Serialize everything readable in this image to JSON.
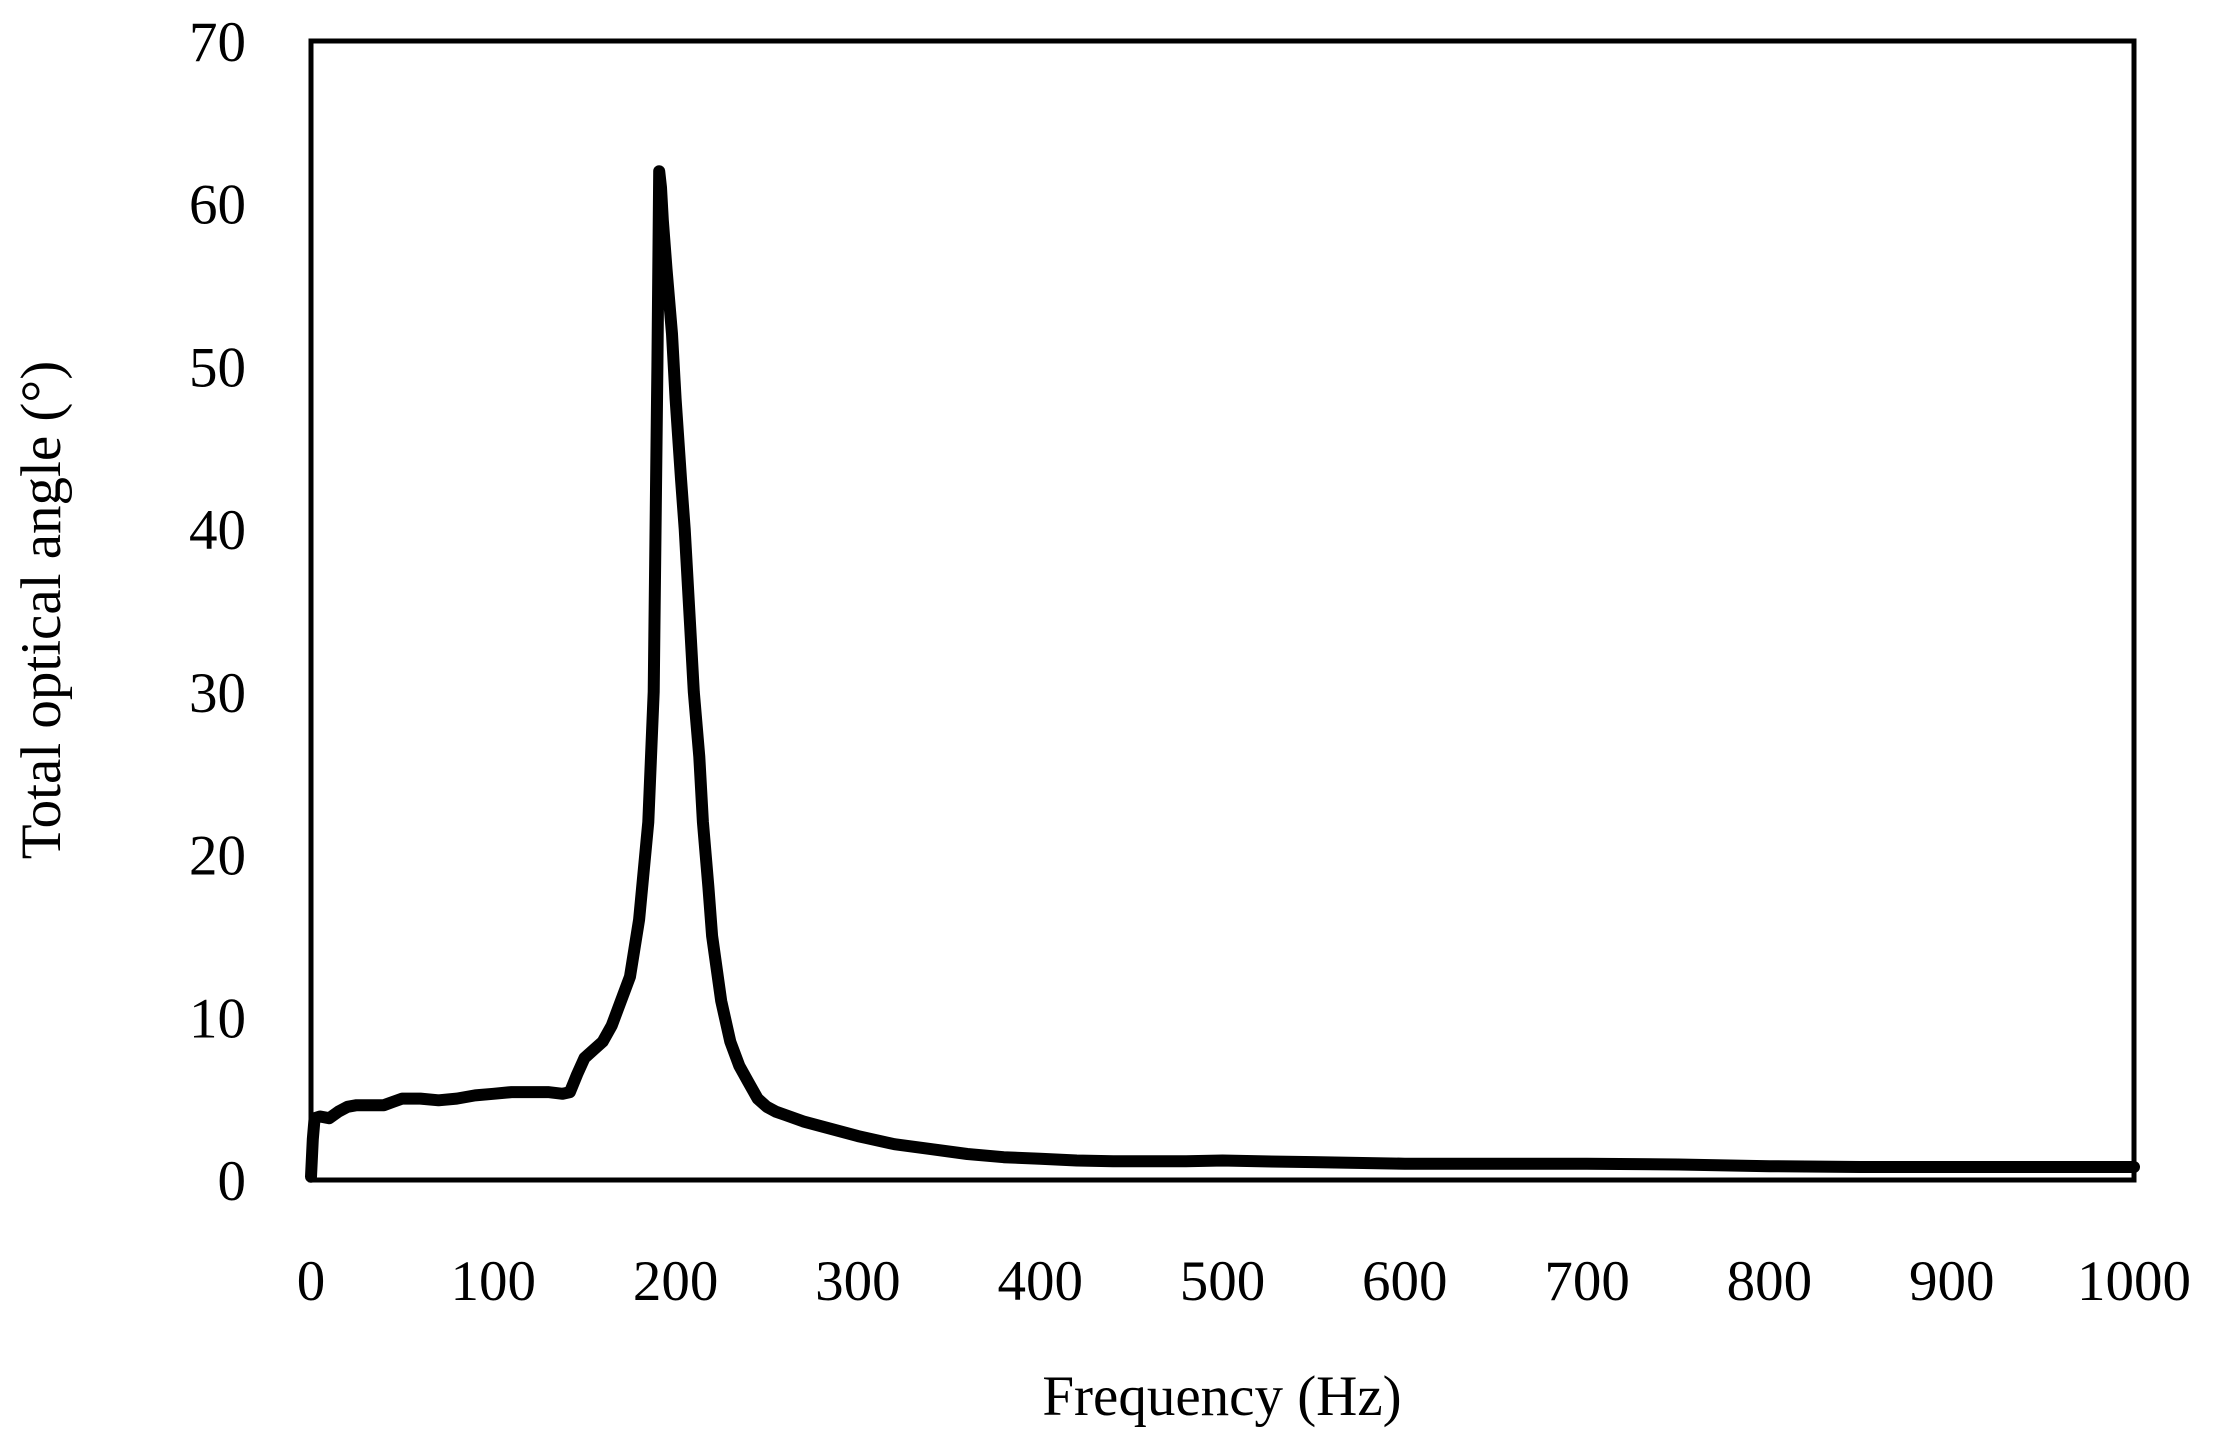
{
  "chart_data": {
    "type": "line",
    "title": "",
    "xlabel": "Frequency (Hz)",
    "ylabel": "Total optical angle (°)",
    "xlim": [
      0,
      1000
    ],
    "ylim": [
      0,
      70
    ],
    "xticks": [
      0,
      100,
      200,
      300,
      400,
      500,
      600,
      700,
      800,
      900,
      1000
    ],
    "yticks": [
      0,
      10,
      20,
      30,
      40,
      50,
      60,
      70
    ],
    "xtick_labels": [
      "0",
      "100",
      "200",
      "300",
      "400",
      "500",
      "600",
      "700",
      "800",
      "900",
      "1000"
    ],
    "ytick_labels": [
      "0",
      "10",
      "20",
      "30",
      "40",
      "50",
      "60",
      "70"
    ],
    "grid": false,
    "legend": "none",
    "line_color": "#000000",
    "series": [
      {
        "x": [
          0,
          1,
          2,
          5,
          10,
          15,
          20,
          25,
          30,
          40,
          45,
          50,
          55,
          60,
          70,
          80,
          90,
          100,
          110,
          120,
          130,
          138,
          142,
          146,
          150,
          155,
          160,
          165,
          170,
          175,
          180,
          185,
          188,
          190,
          191,
          192,
          193,
          195,
          198,
          200,
          203,
          205,
          208,
          210,
          213,
          215,
          218,
          220,
          225,
          230,
          235,
          240,
          245,
          250,
          255,
          260,
          270,
          280,
          300,
          320,
          340,
          360,
          380,
          400,
          420,
          440,
          460,
          480,
          500,
          520,
          550,
          600,
          650,
          700,
          750,
          800,
          850,
          900,
          950,
          1000
        ],
        "y": [
          0.2,
          2.5,
          3.8,
          3.9,
          3.8,
          4.2,
          4.5,
          4.6,
          4.6,
          4.6,
          4.8,
          5.0,
          5.0,
          5.0,
          4.9,
          5.0,
          5.2,
          5.3,
          5.4,
          5.4,
          5.4,
          5.3,
          5.4,
          6.5,
          7.5,
          8.0,
          8.5,
          9.5,
          11.0,
          12.5,
          16.0,
          22.0,
          30.0,
          50.0,
          62.0,
          61.0,
          59.0,
          56.0,
          52.0,
          48.0,
          43.0,
          40.0,
          34.0,
          30.0,
          26.0,
          22.0,
          18.0,
          15.0,
          11.0,
          8.5,
          7.0,
          6.0,
          5.0,
          4.5,
          4.2,
          4.0,
          3.6,
          3.3,
          2.7,
          2.2,
          1.9,
          1.6,
          1.4,
          1.3,
          1.2,
          1.15,
          1.15,
          1.15,
          1.2,
          1.15,
          1.1,
          1.0,
          1.0,
          1.0,
          0.95,
          0.85,
          0.8,
          0.8,
          0.8,
          0.8
        ]
      }
    ]
  }
}
